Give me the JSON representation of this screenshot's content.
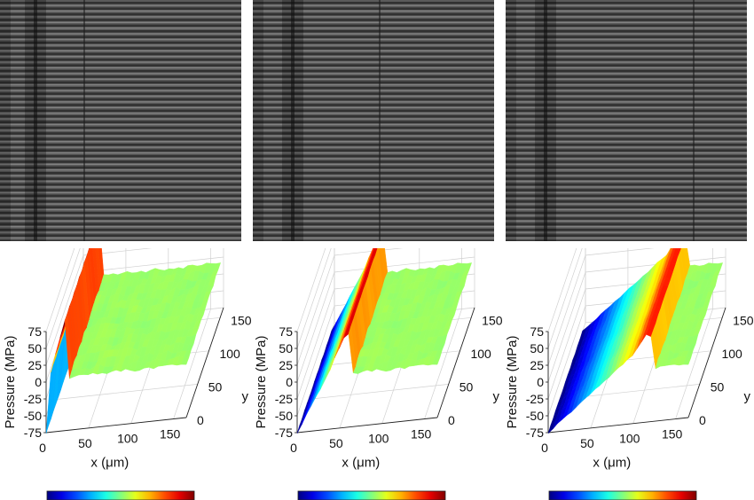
{
  "chart_data": [
    {
      "type": "surface",
      "xlabel": "x (μm)",
      "ylabel": "y (μm)",
      "zlabel": "Pressure (MPa)",
      "x_ticks": [
        "0",
        "50",
        "100",
        "150"
      ],
      "y_ticks": [
        "0",
        "50",
        "100",
        "150"
      ],
      "z_ticks": [
        "75",
        "50",
        "25",
        "0",
        "-25",
        "-50",
        "-75"
      ],
      "xlim": [
        0,
        165
      ],
      "ylim": [
        0,
        165
      ],
      "zlim": [
        -75,
        75
      ],
      "colormap": "jet",
      "front_position_um": 22,
      "peak_pressure_mpa": 88,
      "min_pressure_mpa": -75,
      "plateau_pressure_mpa": 10
    },
    {
      "type": "surface",
      "xlabel": "x (μm)",
      "ylabel": "y (μm)",
      "zlabel": "Pressure (MPa)",
      "x_ticks": [
        "0",
        "50",
        "100",
        "150"
      ],
      "y_ticks": [
        "0",
        "50",
        "100",
        "150"
      ],
      "z_ticks": [
        "75",
        "50",
        "25",
        "0",
        "-25",
        "-50",
        "-75"
      ],
      "xlim": [
        0,
        165
      ],
      "ylim": [
        0,
        165
      ],
      "zlim": [
        -75,
        75
      ],
      "colormap": "jet",
      "front_position_um": 60,
      "peak_pressure_mpa": 70,
      "min_pressure_mpa": -75,
      "plateau_pressure_mpa": 30
    },
    {
      "type": "surface",
      "xlabel": "x (μm)",
      "ylabel": "y (μm)",
      "zlabel": "Pressure (MPa)",
      "x_ticks": [
        "0",
        "50",
        "100",
        "150"
      ],
      "y_ticks": [
        "0",
        "50",
        "100",
        "150"
      ],
      "z_ticks": [
        "75",
        "50",
        "25",
        "0",
        "-25",
        "-50",
        "-75"
      ],
      "xlim": [
        0,
        165
      ],
      "ylim": [
        0,
        165
      ],
      "zlim": [
        -75,
        75
      ],
      "colormap": "jet",
      "front_position_um": 120,
      "peak_pressure_mpa": 62,
      "min_pressure_mpa": -75,
      "plateau_pressure_mpa": 40
    }
  ]
}
